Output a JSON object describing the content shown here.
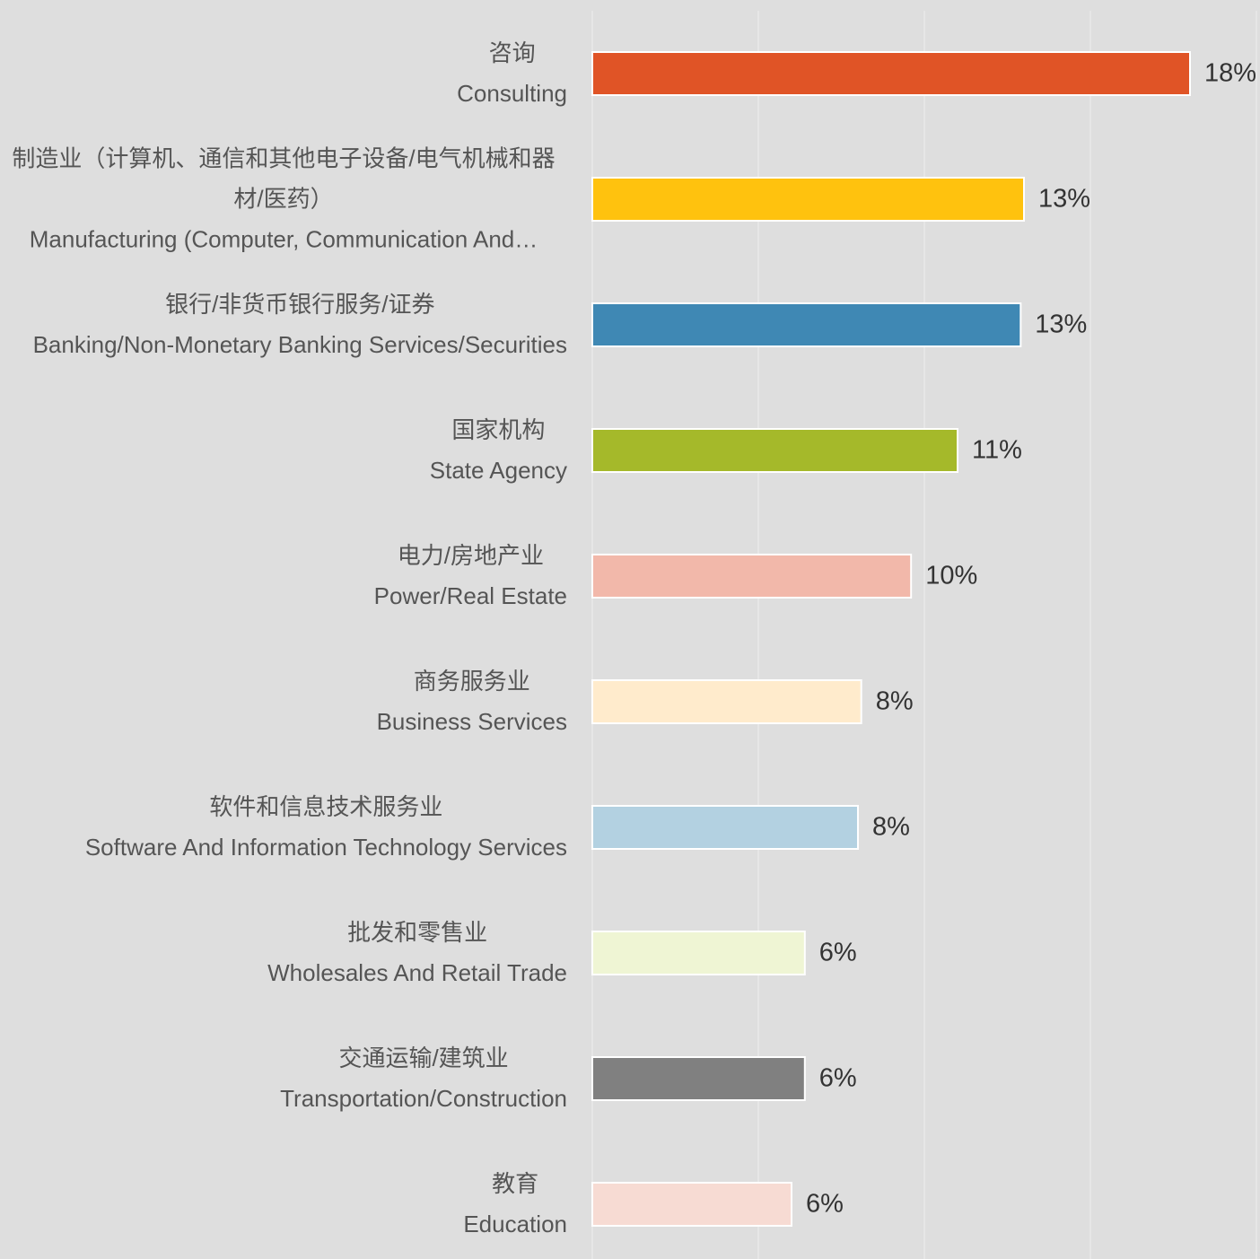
{
  "chart_data": {
    "type": "bar",
    "orientation": "horizontal",
    "categories": [
      "咨询\nConsulting",
      "制造业（计算机、通信和其他电子设备/电气机械和器材/医药）\nManufacturing (Computer, Communication And…",
      "银行/非货币银行服务/证券\nBanking/Non-Monetary Banking Services/Securities",
      "国家机构\nState Agency",
      "电力/房地产业\nPower/Real Estate",
      "商务服务业\nBusiness Services",
      "软件和信息技术服务业\nSoftware And Information Technology Services",
      "批发和零售业\nWholesales And Retail Trade",
      "交通运输/建筑业\nTransportation/Construction",
      "教育\nEducation"
    ],
    "values": [
      18,
      13,
      12.9,
      11,
      9.6,
      8.1,
      8,
      6.4,
      6.4,
      6
    ],
    "value_labels": [
      "18%",
      "13%",
      "13%",
      "11%",
      "10%",
      "8%",
      "8%",
      "6%",
      "6%",
      "6%"
    ],
    "colors": [
      "#e05426",
      "#ffc20e",
      "#3f88b4",
      "#a5b92a",
      "#f2b8aa",
      "#ffebcc",
      "#b3d1e1",
      "#eff5d4",
      "#808080",
      "#f7dbd3"
    ],
    "xlim": [
      0,
      20
    ],
    "xticks": [
      0,
      5,
      10,
      15,
      20
    ],
    "grid": true
  }
}
